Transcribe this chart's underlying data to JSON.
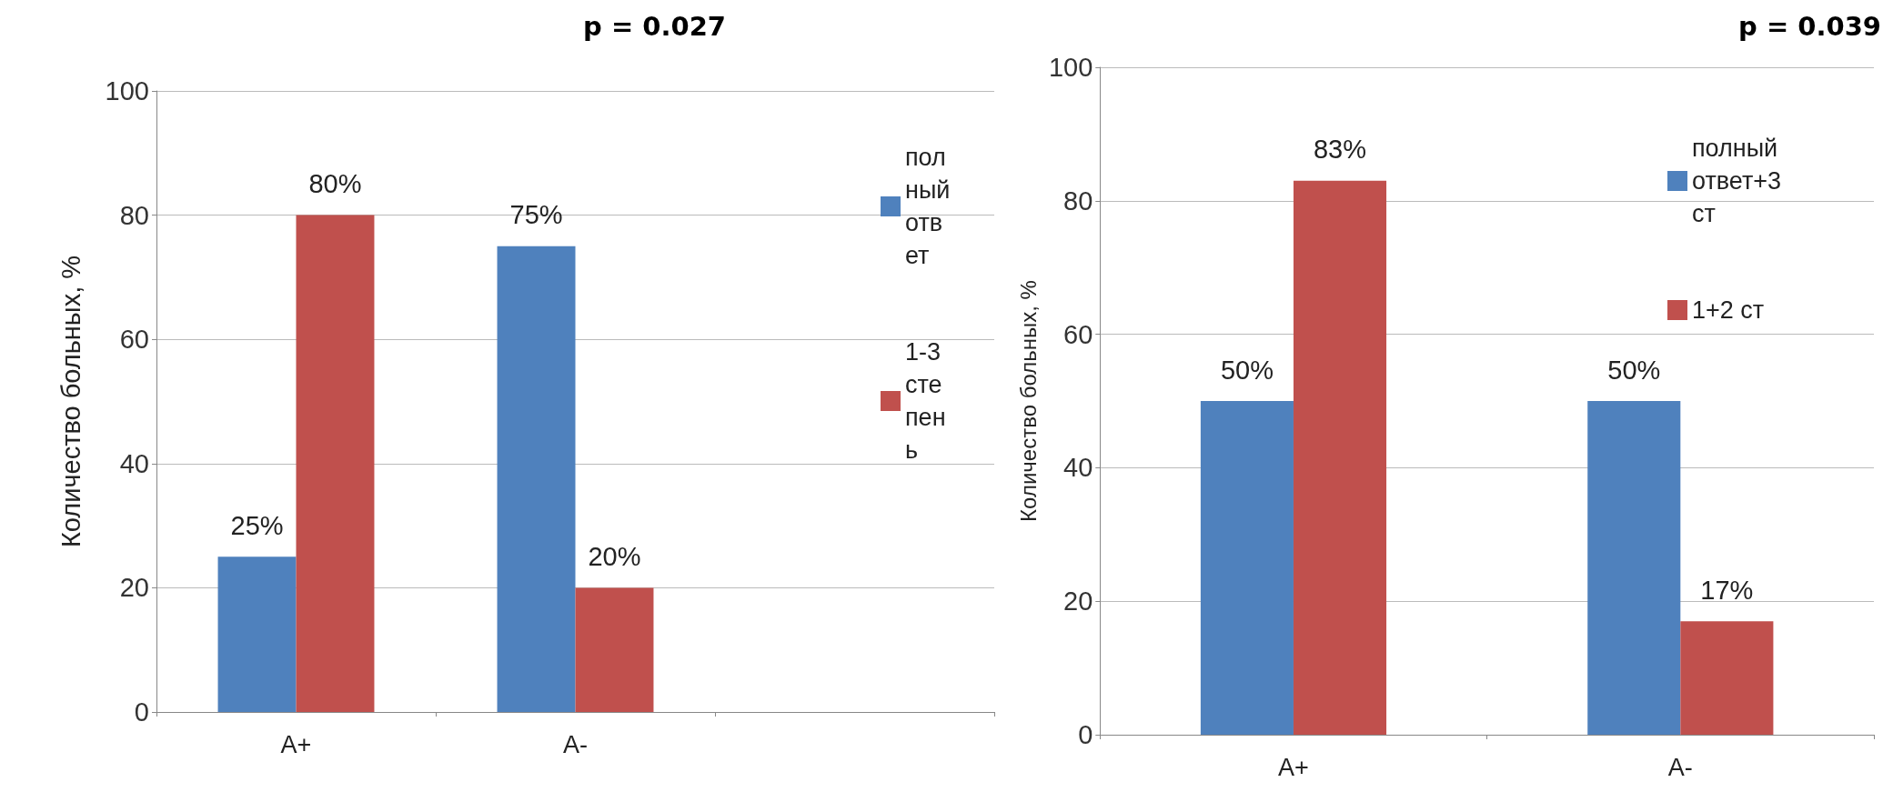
{
  "chart_data": [
    {
      "type": "bar",
      "ylabel": "Количество больных, %",
      "categories": [
        "A+",
        "A-",
        null
      ],
      "series": [
        {
          "name": "полный ответ",
          "color": "#4f81bd",
          "values": [
            25,
            75,
            null
          ],
          "value_labels": [
            "25%",
            "75%",
            null
          ]
        },
        {
          "name": "1-3 степень",
          "color": "#c0504d",
          "values": [
            80,
            20,
            null
          ],
          "value_labels": [
            "80%",
            "20%",
            null
          ]
        }
      ],
      "ylim": [
        0,
        100
      ],
      "yticks": [
        0,
        20,
        40,
        60,
        80,
        100
      ],
      "grid": "y",
      "legend": "right",
      "annotations": [
        "p = 0.027"
      ]
    },
    {
      "type": "bar",
      "ylabel": "Количество больных, %",
      "categories": [
        "A+",
        "A-"
      ],
      "series": [
        {
          "name": "полный ответ+3 ст",
          "color": "#4f81bd",
          "values": [
            50,
            50
          ],
          "value_labels": [
            "50%",
            "50%"
          ]
        },
        {
          "name": "1+2 ст",
          "color": "#c0504d",
          "values": [
            83,
            17
          ],
          "value_labels": [
            "83%",
            "17%"
          ]
        }
      ],
      "ylim": [
        0,
        100
      ],
      "yticks": [
        0,
        20,
        40,
        60,
        80,
        100
      ],
      "grid": "y",
      "legend": "top right",
      "annotations": [
        "p = 0.039"
      ]
    }
  ]
}
